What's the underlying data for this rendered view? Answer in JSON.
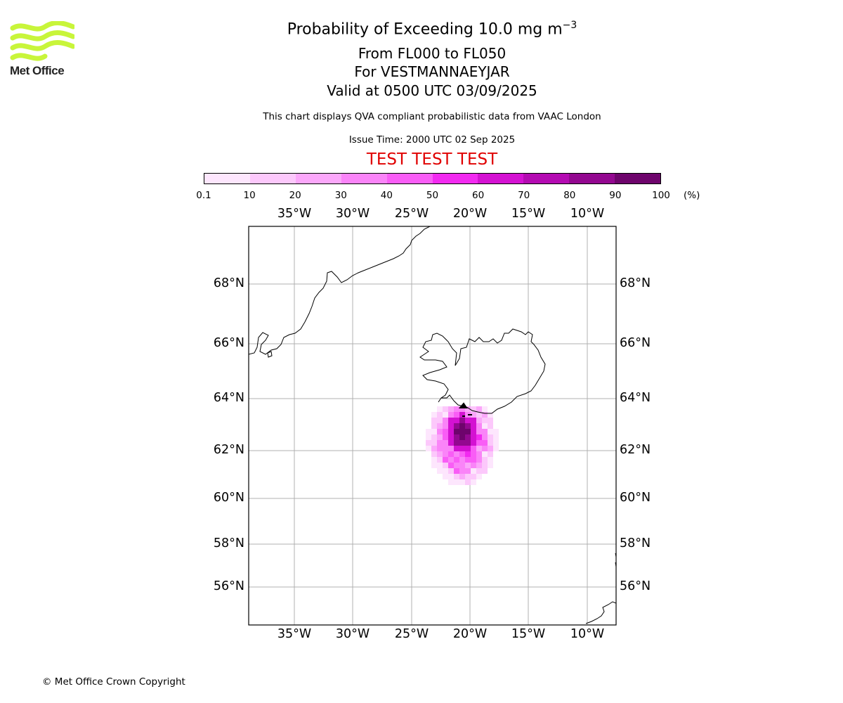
{
  "logo": {
    "text": "Met Office",
    "icon": "met-office-wave-logo",
    "color": "#c8f53a"
  },
  "title": {
    "line1_prefix": "Probability of Exceeding 10.0 mg m",
    "line1_sup": "−3",
    "line2": "From FL000 to FL050",
    "line3": "For VESTMANNAEYJAR",
    "line4": "Valid at 0500 UTC 03/09/2025"
  },
  "subtitle": "This chart displays QVA compliant probabilistic data from VAAC London",
  "issue_time": "Issue Time: 2000 UTC 02 Sep 2025",
  "banner": "TEST TEST TEST",
  "colorbar": {
    "labels": [
      "0.1",
      "10",
      "20",
      "30",
      "40",
      "50",
      "60",
      "70",
      "80",
      "90",
      "100"
    ],
    "unit": "(%)",
    "colors": [
      "#fde6fd",
      "#fcc8fb",
      "#fba7fa",
      "#fa84f8",
      "#f95df6",
      "#f22af0",
      "#d412d2",
      "#b40bb2",
      "#930890",
      "#6e046c"
    ]
  },
  "map": {
    "lon_labels": [
      "35°W",
      "30°W",
      "25°W",
      "20°W",
      "15°W",
      "10°W"
    ],
    "lat_labels": [
      "68°N",
      "66°N",
      "64°N",
      "62°N",
      "60°N",
      "58°N",
      "56°N"
    ],
    "grid": true,
    "volcano": "VESTMANNAEYJAR"
  },
  "copyright": "© Met Office Crown Copyright"
}
